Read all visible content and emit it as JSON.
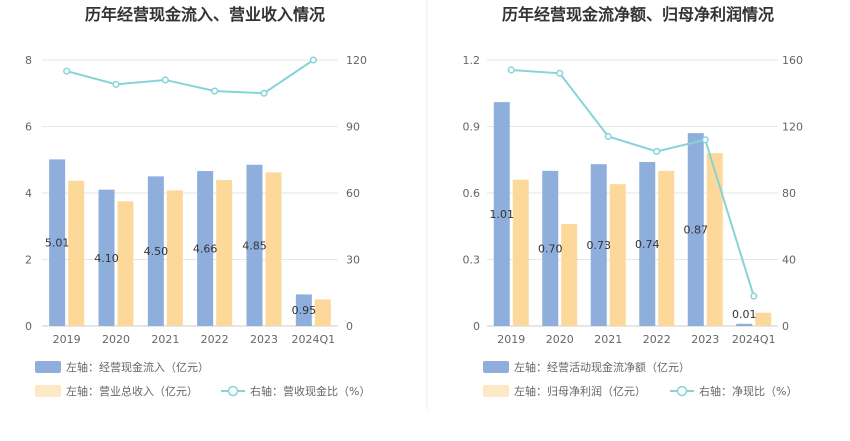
{
  "chart_data": [
    {
      "type": "bar",
      "title": "历年经营现金流入、营业收入情况",
      "categories": [
        "2019",
        "2020",
        "2021",
        "2022",
        "2023",
        "2024Q1"
      ],
      "left_axis": {
        "ylim": [
          0,
          8
        ],
        "ticks": [
          "0",
          "2",
          "4",
          "6",
          "8"
        ]
      },
      "right_axis": {
        "ylim": [
          0,
          120
        ],
        "ticks": [
          "0",
          "30",
          "60",
          "90",
          "120"
        ]
      },
      "series": [
        {
          "name": "左轴：经营现金流入（亿元）",
          "axis": "left",
          "kind": "bar",
          "color": "#8eaedb",
          "values": [
            5.01,
            4.1,
            4.5,
            4.66,
            4.85,
            0.95
          ],
          "labels": [
            "5.01",
            "4.10",
            "4.50",
            "4.66",
            "4.85",
            "0.95"
          ]
        },
        {
          "name": "左轴：营业总收入（亿元）",
          "axis": "left",
          "kind": "bar",
          "color": "#fcd99a",
          "values": [
            4.37,
            3.75,
            4.08,
            4.39,
            4.62,
            0.8
          ]
        },
        {
          "name": "右轴：营收现金比（%）",
          "axis": "right",
          "kind": "line",
          "color": "#86d3da",
          "values": [
            115,
            109,
            111,
            106,
            105,
            120
          ]
        }
      ]
    },
    {
      "type": "bar",
      "title": "历年经营现金流净额、归母净利润情况",
      "categories": [
        "2019",
        "2020",
        "2021",
        "2022",
        "2023",
        "2024Q1"
      ],
      "left_axis": {
        "ylim": [
          0,
          1.2
        ],
        "ticks": [
          "0",
          "0.3",
          "0.6",
          "0.9",
          "1.2"
        ]
      },
      "right_axis": {
        "ylim": [
          0,
          160
        ],
        "ticks": [
          "0",
          "40",
          "80",
          "120",
          "160"
        ]
      },
      "series": [
        {
          "name": "左轴：经营活动现金流净额（亿元）",
          "axis": "left",
          "kind": "bar",
          "color": "#8eaedb",
          "values": [
            1.01,
            0.7,
            0.73,
            0.74,
            0.87,
            0.01
          ],
          "labels": [
            "1.01",
            "0.70",
            "0.73",
            "0.74",
            "0.87",
            "0.01"
          ]
        },
        {
          "name": "左轴：归母净利润（亿元）",
          "axis": "left",
          "kind": "bar",
          "color": "#fcd99a",
          "values": [
            0.66,
            0.46,
            0.64,
            0.7,
            0.78,
            0.06
          ]
        },
        {
          "name": "右轴：净现比（%）",
          "axis": "right",
          "kind": "line",
          "color": "#86d3da",
          "values": [
            154,
            152,
            114,
            105,
            112,
            18
          ]
        }
      ]
    }
  ]
}
